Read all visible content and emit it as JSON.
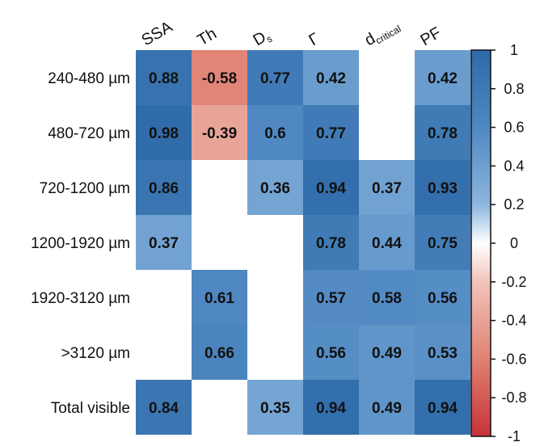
{
  "chart_data": {
    "type": "heatmap",
    "columns": [
      {
        "main": "SSA",
        "sub": ""
      },
      {
        "main": "Th",
        "sub": ""
      },
      {
        "main": "D",
        "sub": "s"
      },
      {
        "main": "Γ",
        "sub": ""
      },
      {
        "main": "d",
        "sub": "critical"
      },
      {
        "main": "PF",
        "sub": ""
      }
    ],
    "rows": [
      "240-480 µm",
      "480-720 µm",
      "720-1200 µm",
      "1200-1920 µm",
      "1920-3120 µm",
      ">3120 µm",
      "Total visible"
    ],
    "values": [
      [
        0.88,
        -0.58,
        0.77,
        0.42,
        null,
        0.42
      ],
      [
        0.98,
        -0.39,
        0.6,
        0.77,
        null,
        0.78
      ],
      [
        0.86,
        null,
        0.36,
        0.94,
        0.37,
        0.93
      ],
      [
        0.37,
        null,
        null,
        0.78,
        0.44,
        0.75
      ],
      [
        null,
        0.61,
        null,
        0.57,
        0.58,
        0.56
      ],
      [
        null,
        0.66,
        null,
        0.56,
        0.49,
        0.53
      ],
      [
        0.84,
        null,
        0.35,
        0.94,
        0.49,
        0.94
      ]
    ],
    "value_labels": [
      [
        "0.88",
        "-0.58",
        "0.77",
        "0.42",
        "",
        "0.42"
      ],
      [
        "0.98",
        "-0.39",
        "0.6",
        "0.77",
        "",
        "0.78"
      ],
      [
        "0.86",
        "",
        "0.36",
        "0.94",
        "0.37",
        "0.93"
      ],
      [
        "0.37",
        "",
        "",
        "0.78",
        "0.44",
        "0.75"
      ],
      [
        "",
        "0.61",
        "",
        "0.57",
        "0.58",
        "0.56"
      ],
      [
        "",
        "0.66",
        "",
        "0.56",
        "0.49",
        "0.53"
      ],
      [
        "0.84",
        "",
        "0.35",
        "0.94",
        "0.49",
        "0.94"
      ]
    ],
    "colorbar": {
      "range": [
        -1,
        1
      ],
      "ticks": [
        "1",
        "0.8",
        "0.6",
        "0.4",
        "0.2",
        "0",
        "-0.2",
        "-0.4",
        "-0.6",
        "-0.8",
        "-1"
      ],
      "tick_values": [
        1,
        0.8,
        0.6,
        0.4,
        0.2,
        0,
        -0.2,
        -0.4,
        -0.6,
        -0.8,
        -1
      ],
      "color_negative": "#c6323a",
      "color_zero": "#ffffff",
      "color_positive": "#2e6aa8"
    }
  }
}
